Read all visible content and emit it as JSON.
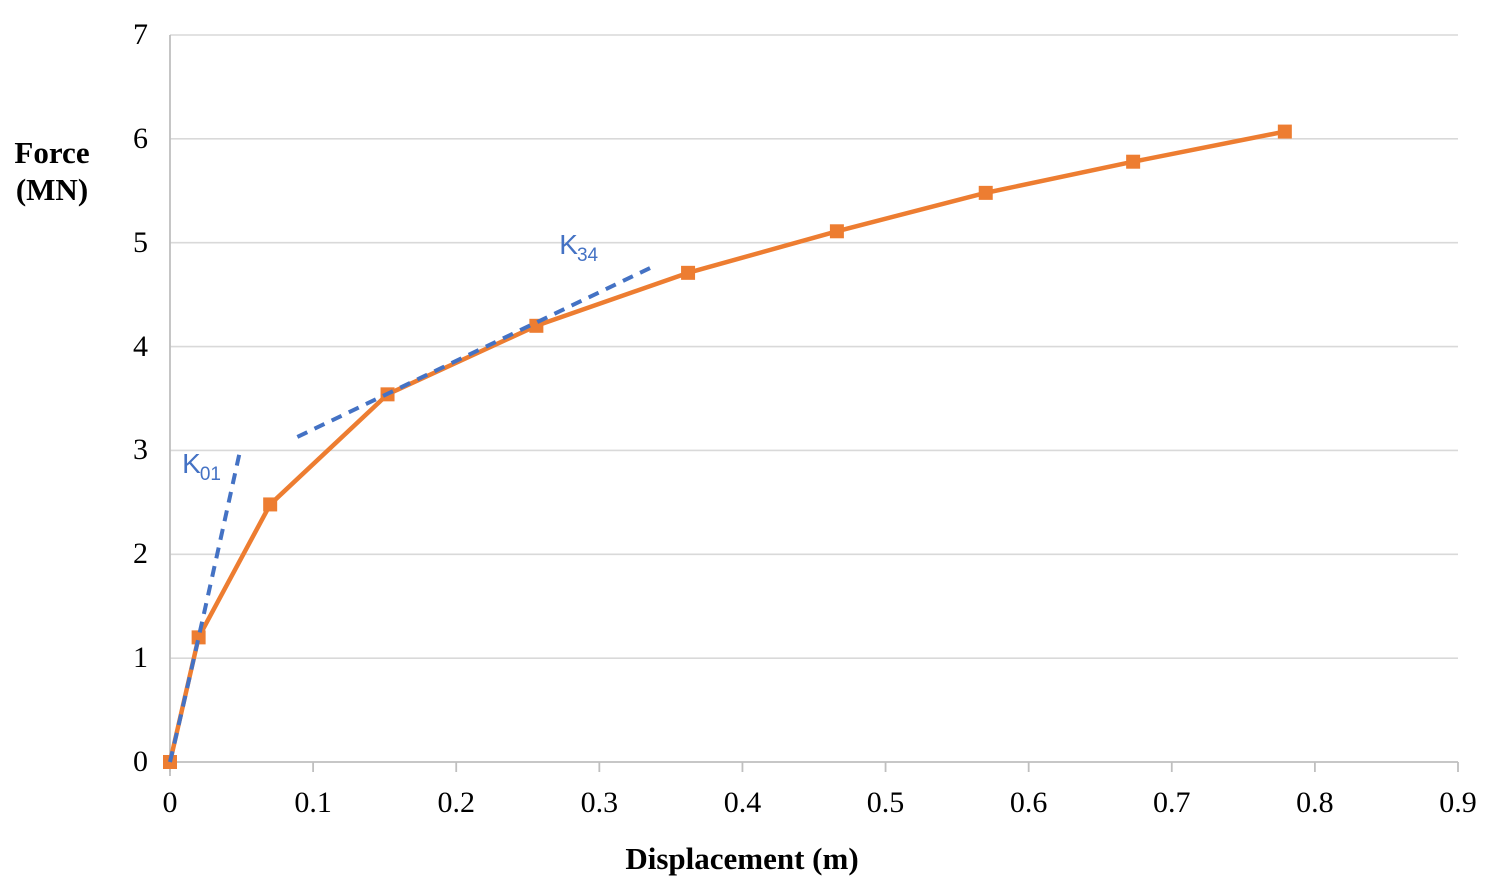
{
  "chart_data": {
    "type": "line",
    "title": "",
    "xlabel": "Displacement (m)",
    "ylabel": "Force (MN)",
    "ylabel_lines": [
      "Force",
      "(MN)"
    ],
    "xlim": [
      0,
      0.9
    ],
    "ylim": [
      0,
      7
    ],
    "x_ticks": [
      0,
      0.1,
      0.2,
      0.3,
      0.4,
      0.5,
      0.6,
      0.7,
      0.8,
      0.9
    ],
    "x_tick_labels": [
      "0",
      "0.1",
      "0.2",
      "0.3",
      "0.4",
      "0.5",
      "0.6",
      "0.7",
      "0.8",
      "0.9"
    ],
    "y_ticks": [
      0,
      1,
      2,
      3,
      4,
      5,
      6,
      7
    ],
    "y_tick_labels": [
      "0",
      "1",
      "2",
      "3",
      "4",
      "5",
      "6",
      "7"
    ],
    "grid": "horizontal-only",
    "legend": "none",
    "series": [
      {
        "name": "force-displacement-curve",
        "color": "#ED7D31",
        "style": "solid",
        "line_width": 4.5,
        "marker": "square",
        "marker_size": 14,
        "points": [
          [
            0,
            0
          ],
          [
            0.02,
            1.2
          ],
          [
            0.07,
            2.48
          ],
          [
            0.152,
            3.54
          ],
          [
            0.256,
            4.2
          ],
          [
            0.362,
            4.71
          ],
          [
            0.466,
            5.11
          ],
          [
            0.57,
            5.48
          ],
          [
            0.673,
            5.78
          ],
          [
            0.779,
            6.07
          ]
        ]
      }
    ],
    "annotations": [
      {
        "name": "K01-secant-stiffness",
        "label": {
          "base": "K",
          "sub": "01"
        },
        "color": "#4472C4",
        "style": "dashed",
        "shape": "curve",
        "points": [
          [
            0,
            0
          ],
          [
            0.02,
            1.2
          ],
          [
            0.049,
            3.0
          ]
        ],
        "label_pos": [
          0.0085,
          2.87
        ]
      },
      {
        "name": "K34-secant-stiffness",
        "label": {
          "base": "K",
          "sub": "34"
        },
        "color": "#4472C4",
        "style": "dashed",
        "shape": "line",
        "points": [
          [
            0.089,
            3.13
          ],
          [
            0.339,
            4.78
          ]
        ],
        "label_pos": [
          0.272,
          4.98
        ]
      }
    ],
    "colors": {
      "grid": "#D9D9D9",
      "axis": "#BFBFBF",
      "text": "#000000",
      "background": "#FFFFFF"
    }
  }
}
